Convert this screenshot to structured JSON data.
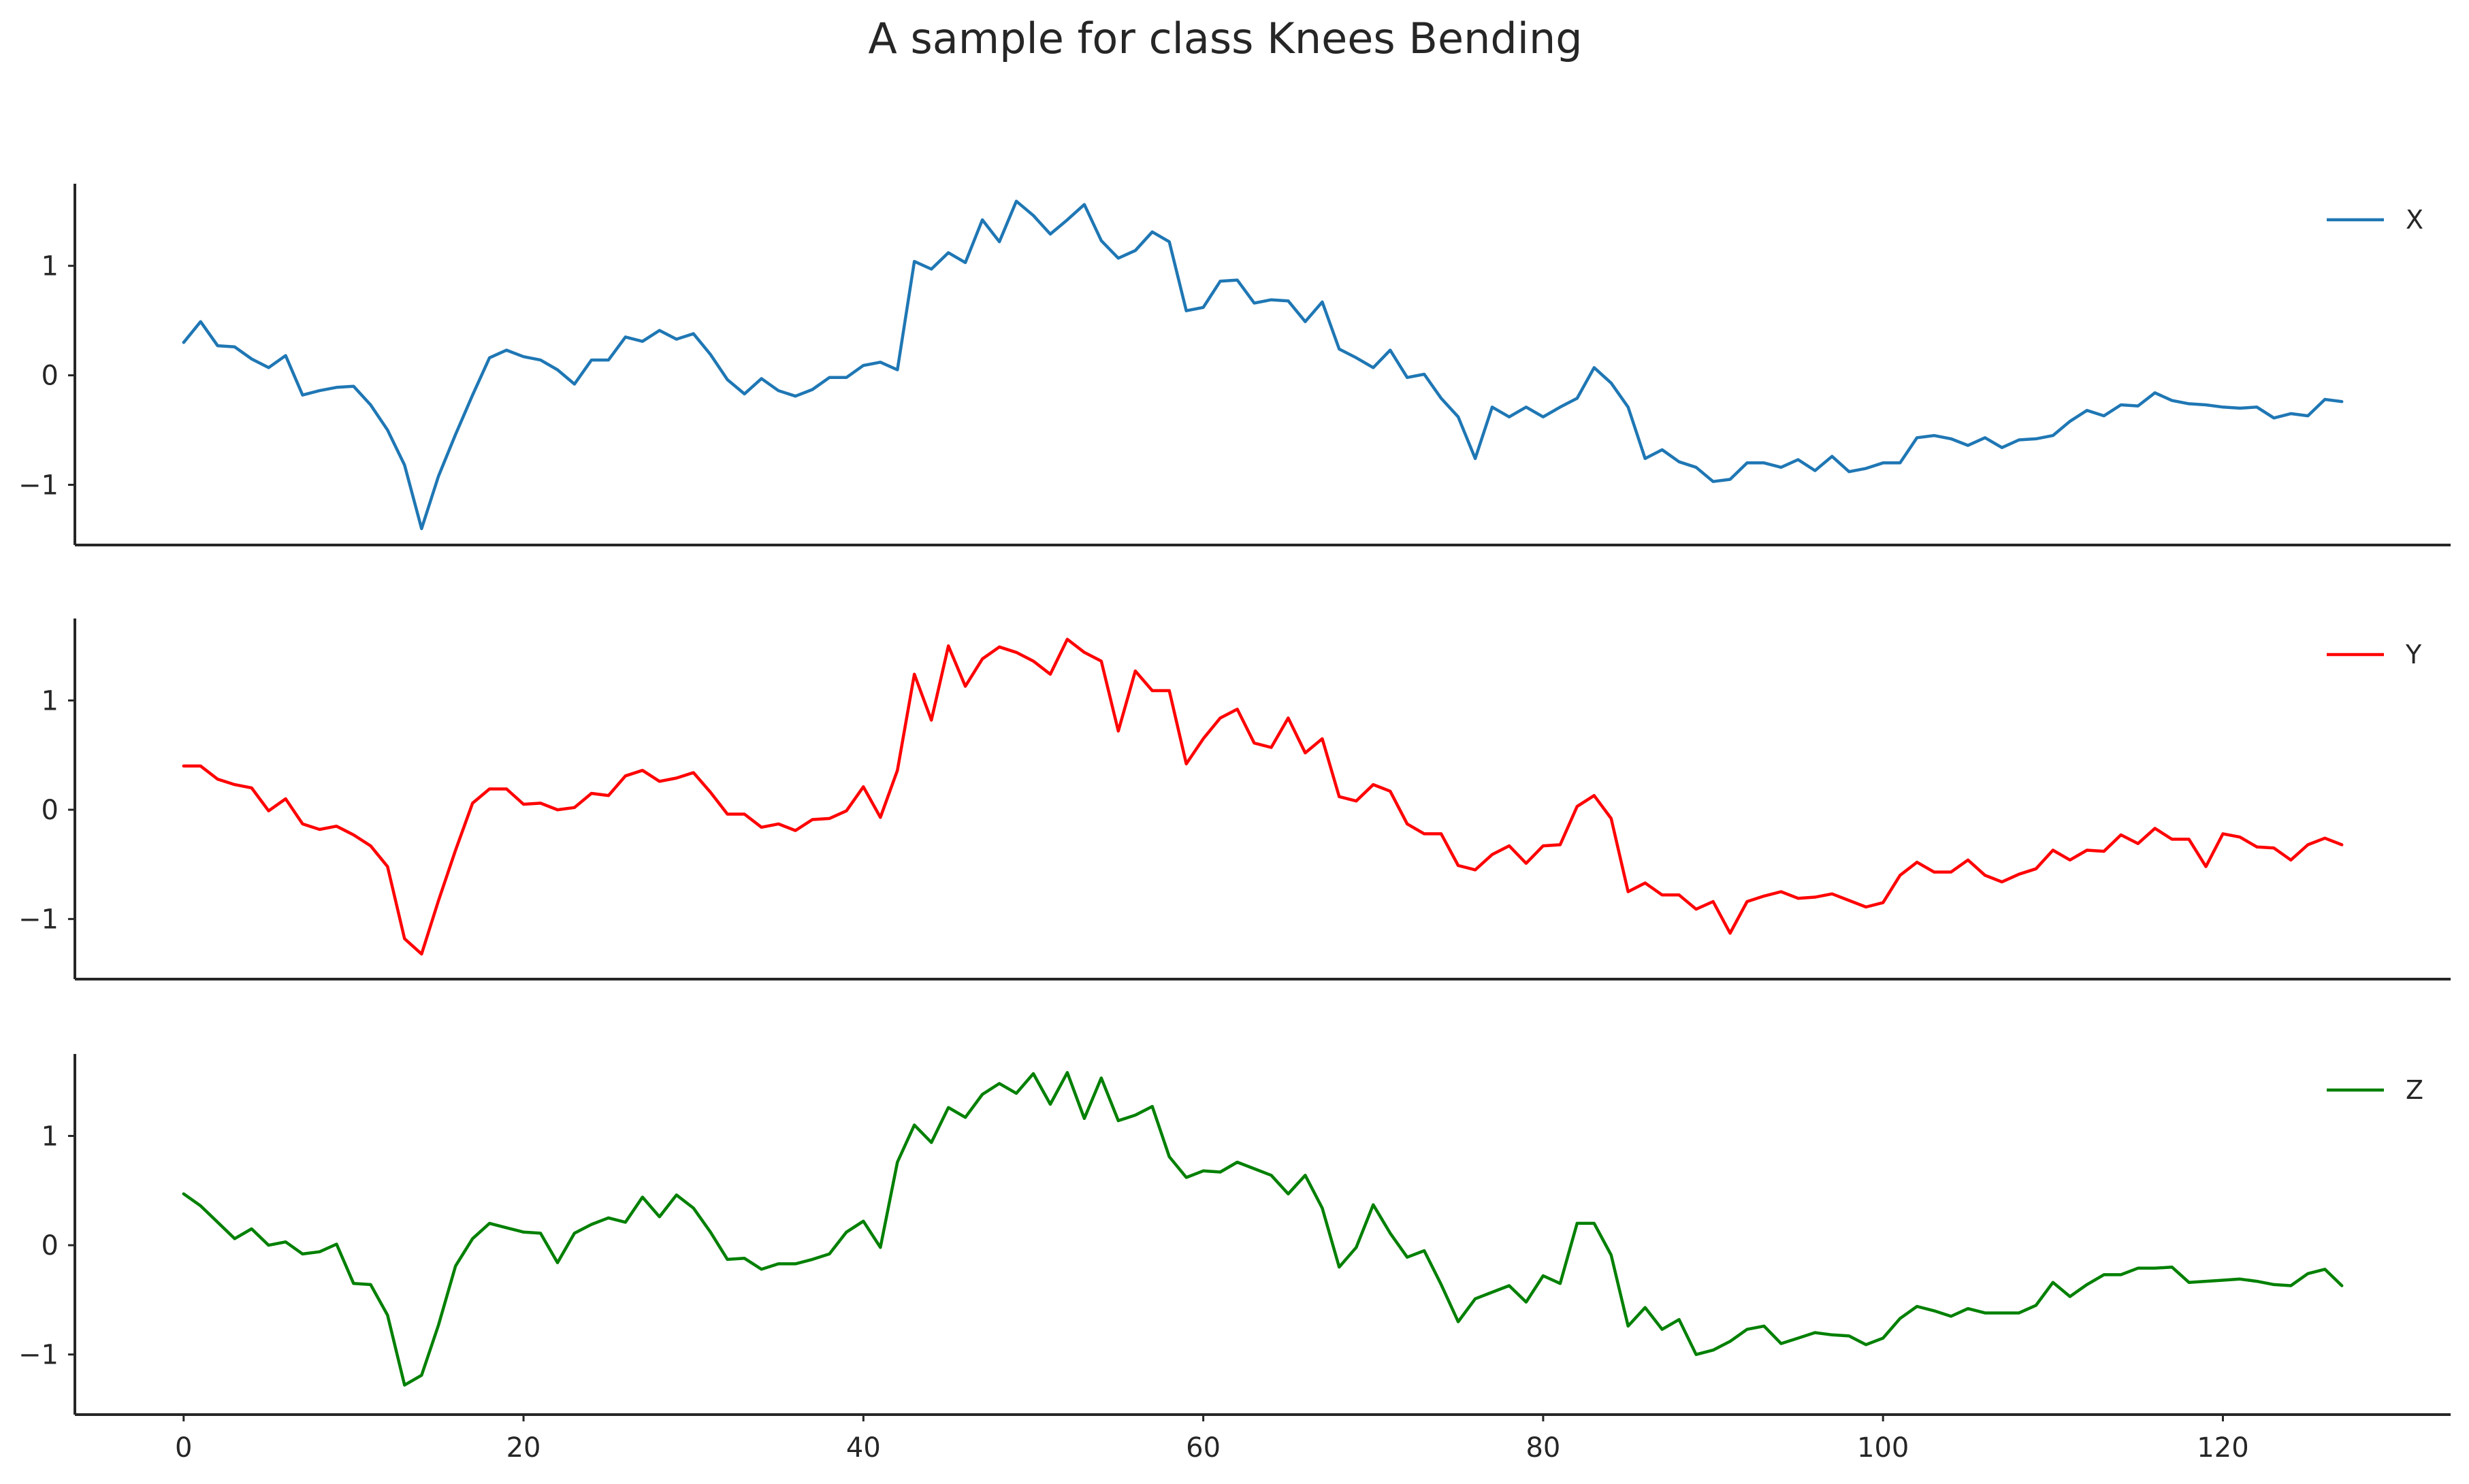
{
  "title": "A sample for class Knees Bending",
  "chart_data": {
    "type": "line",
    "title": "A sample for class Knees Bending",
    "sharex": true,
    "xlim": [
      -6.4,
      133.4
    ],
    "xticks": [
      0,
      20,
      40,
      60,
      80,
      100,
      120
    ],
    "ylim": [
      -1.55,
      1.75
    ],
    "yticks": [
      -1,
      0,
      1
    ],
    "grid": false,
    "legend_position": "upper right",
    "x": [
      0,
      1,
      2,
      3,
      4,
      5,
      6,
      7,
      8,
      9,
      10,
      11,
      12,
      13,
      14,
      15,
      16,
      17,
      18,
      19,
      20,
      21,
      22,
      23,
      24,
      25,
      26,
      27,
      28,
      29,
      30,
      31,
      32,
      33,
      34,
      35,
      36,
      37,
      38,
      39,
      40,
      41,
      42,
      43,
      44,
      45,
      46,
      47,
      48,
      49,
      50,
      51,
      52,
      53,
      54,
      55,
      56,
      57,
      58,
      59,
      60,
      61,
      62,
      63,
      64,
      65,
      66,
      67,
      68,
      69,
      70,
      71,
      72,
      73,
      74,
      75,
      76,
      77,
      78,
      79,
      80,
      81,
      82,
      83,
      84,
      85,
      86,
      87,
      88,
      89,
      90,
      91,
      92,
      93,
      94,
      95,
      96,
      97,
      98,
      99,
      100,
      101,
      102,
      103,
      104,
      105,
      106,
      107,
      108,
      109,
      110,
      111,
      112,
      113,
      114,
      115,
      116,
      117,
      118,
      119,
      120,
      121,
      122,
      123,
      124,
      125,
      126,
      127
    ],
    "panels": [
      {
        "name": "X",
        "color": "#1f77b4",
        "values": [
          0.3,
          0.49,
          0.27,
          0.26,
          0.15,
          0.07,
          0.18,
          -0.18,
          -0.14,
          -0.11,
          -0.1,
          -0.27,
          -0.5,
          -0.82,
          -1.4,
          -0.92,
          -0.54,
          -0.18,
          0.16,
          0.23,
          0.17,
          0.14,
          0.05,
          -0.08,
          0.14,
          0.14,
          0.35,
          0.31,
          0.41,
          0.33,
          0.38,
          0.19,
          -0.04,
          -0.17,
          -0.03,
          -0.14,
          -0.19,
          -0.13,
          -0.02,
          -0.02,
          0.09,
          0.12,
          0.05,
          1.04,
          0.97,
          1.12,
          1.03,
          1.42,
          1.22,
          1.59,
          1.46,
          1.29,
          1.42,
          1.56,
          1.23,
          1.07,
          1.14,
          1.31,
          1.22,
          0.59,
          0.62,
          0.86,
          0.87,
          0.66,
          0.69,
          0.68,
          0.49,
          0.67,
          0.24,
          0.16,
          0.07,
          0.23,
          -0.02,
          0.01,
          -0.21,
          -0.38,
          -0.76,
          -0.29,
          -0.38,
          -0.29,
          -0.38,
          -0.29,
          -0.21,
          0.07,
          -0.07,
          -0.29,
          -0.76,
          -0.68,
          -0.79,
          -0.84,
          -0.97,
          -0.95,
          -0.8,
          -0.8,
          -0.84,
          -0.77,
          -0.87,
          -0.74,
          -0.88,
          -0.85,
          -0.8,
          -0.8,
          -0.57,
          -0.55,
          -0.58,
          -0.64,
          -0.57,
          -0.66,
          -0.59,
          -0.58,
          -0.55,
          -0.42,
          -0.32,
          -0.37,
          -0.27,
          -0.28,
          -0.16,
          -0.23,
          -0.26,
          -0.27,
          -0.29,
          -0.3,
          -0.29,
          -0.39,
          -0.35,
          -0.37,
          -0.22,
          -0.24
        ]
      },
      {
        "name": "Y",
        "color": "#ff0000",
        "values": [
          0.4,
          0.4,
          0.28,
          0.23,
          0.2,
          -0.01,
          0.1,
          -0.13,
          -0.18,
          -0.15,
          -0.23,
          -0.33,
          -0.52,
          -1.18,
          -1.32,
          -0.83,
          -0.37,
          0.06,
          0.19,
          0.19,
          0.05,
          0.06,
          0.0,
          0.02,
          0.15,
          0.13,
          0.31,
          0.36,
          0.26,
          0.29,
          0.34,
          0.16,
          -0.04,
          -0.04,
          -0.16,
          -0.13,
          -0.19,
          -0.09,
          -0.08,
          -0.01,
          0.21,
          -0.07,
          0.36,
          1.24,
          0.82,
          1.5,
          1.13,
          1.38,
          1.49,
          1.44,
          1.36,
          1.24,
          1.56,
          1.44,
          1.36,
          0.72,
          1.27,
          1.09,
          1.09,
          0.42,
          0.65,
          0.84,
          0.92,
          0.61,
          0.57,
          0.84,
          0.52,
          0.65,
          0.12,
          0.08,
          0.23,
          0.17,
          -0.13,
          -0.22,
          -0.22,
          -0.51,
          -0.55,
          -0.41,
          -0.33,
          -0.49,
          -0.33,
          -0.32,
          0.03,
          0.13,
          -0.08,
          -0.75,
          -0.67,
          -0.78,
          -0.78,
          -0.91,
          -0.84,
          -1.13,
          -0.84,
          -0.79,
          -0.75,
          -0.81,
          -0.8,
          -0.77,
          -0.83,
          -0.89,
          -0.85,
          -0.6,
          -0.48,
          -0.57,
          -0.57,
          -0.46,
          -0.6,
          -0.66,
          -0.59,
          -0.54,
          -0.37,
          -0.46,
          -0.37,
          -0.38,
          -0.23,
          -0.31,
          -0.17,
          -0.27,
          -0.27,
          -0.52,
          -0.22,
          -0.25,
          -0.34,
          -0.35,
          -0.46,
          -0.32,
          -0.26,
          -0.32
        ]
      },
      {
        "name": "Z",
        "color": "#008000",
        "values": [
          0.47,
          0.36,
          0.21,
          0.06,
          0.15,
          0.0,
          0.03,
          -0.08,
          -0.06,
          0.01,
          -0.35,
          -0.36,
          -0.64,
          -1.28,
          -1.19,
          -0.73,
          -0.19,
          0.06,
          0.2,
          0.16,
          0.12,
          0.11,
          -0.16,
          0.11,
          0.19,
          0.25,
          0.21,
          0.44,
          0.26,
          0.46,
          0.34,
          0.12,
          -0.13,
          -0.12,
          -0.22,
          -0.17,
          -0.17,
          -0.13,
          -0.08,
          0.12,
          0.22,
          -0.02,
          0.76,
          1.1,
          0.94,
          1.26,
          1.17,
          1.38,
          1.48,
          1.39,
          1.57,
          1.29,
          1.58,
          1.16,
          1.53,
          1.14,
          1.19,
          1.27,
          0.81,
          0.62,
          0.68,
          0.67,
          0.76,
          0.7,
          0.64,
          0.47,
          0.64,
          0.34,
          -0.2,
          -0.02,
          0.37,
          0.11,
          -0.11,
          -0.05,
          -0.36,
          -0.7,
          -0.49,
          -0.43,
          -0.37,
          -0.52,
          -0.28,
          -0.35,
          0.2,
          0.2,
          -0.09,
          -0.74,
          -0.57,
          -0.77,
          -0.68,
          -1.0,
          -0.96,
          -0.88,
          -0.77,
          -0.74,
          -0.9,
          -0.85,
          -0.8,
          -0.82,
          -0.83,
          -0.91,
          -0.85,
          -0.67,
          -0.56,
          -0.6,
          -0.65,
          -0.58,
          -0.62,
          -0.62,
          -0.62,
          -0.55,
          -0.34,
          -0.47,
          -0.36,
          -0.27,
          -0.27,
          -0.21,
          -0.21,
          -0.2,
          -0.34,
          -0.33,
          -0.32,
          -0.31,
          -0.33,
          -0.36,
          -0.37,
          -0.26,
          -0.22,
          -0.37
        ]
      }
    ]
  }
}
